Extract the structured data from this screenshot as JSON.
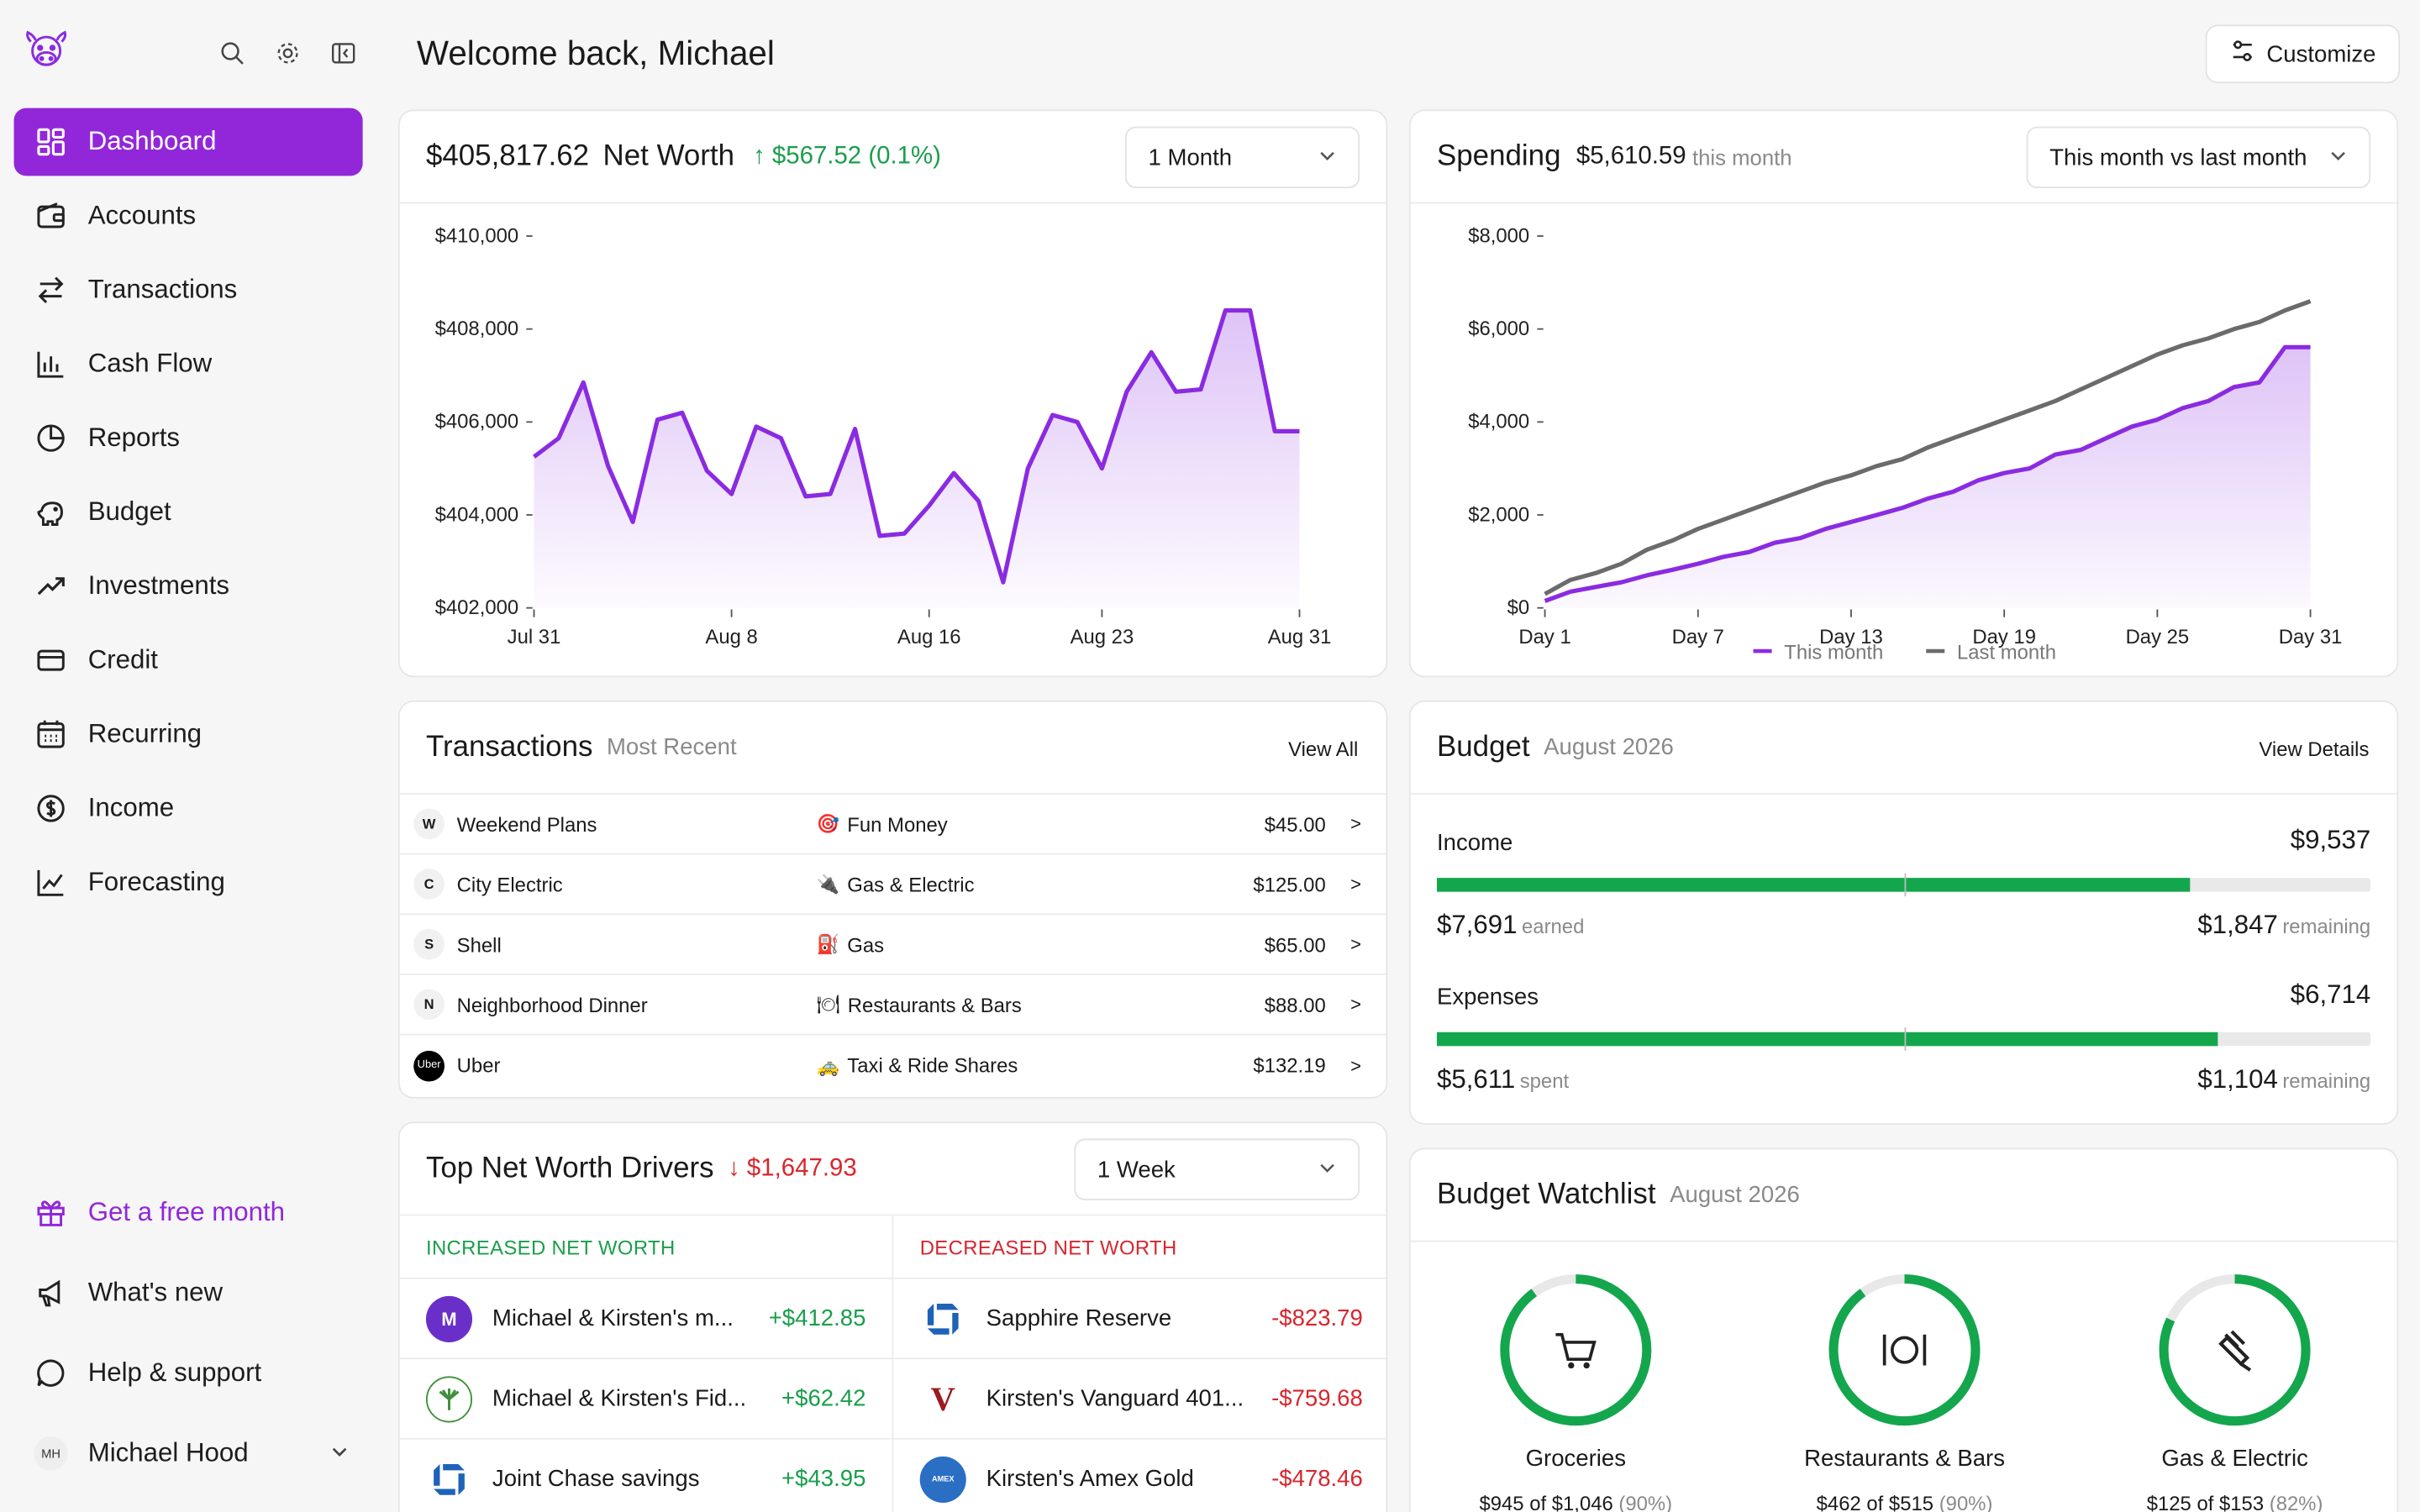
{
  "sidebar": {
    "nav": [
      {
        "label": "Dashboard",
        "icon": "dashboard-icon",
        "active": true
      },
      {
        "label": "Accounts",
        "icon": "wallet-icon"
      },
      {
        "label": "Transactions",
        "icon": "transfer-icon"
      },
      {
        "label": "Cash Flow",
        "icon": "bar-chart-icon"
      },
      {
        "label": "Reports",
        "icon": "pie-chart-icon"
      },
      {
        "label": "Budget",
        "icon": "piggy-bank-icon"
      },
      {
        "label": "Investments",
        "icon": "trend-up-icon"
      },
      {
        "label": "Credit",
        "icon": "credit-card-icon"
      },
      {
        "label": "Recurring",
        "icon": "calendar-icon"
      },
      {
        "label": "Income",
        "icon": "dollar-circle-icon"
      },
      {
        "label": "Forecasting",
        "icon": "line-chart-icon"
      }
    ],
    "bottom": [
      {
        "label": "Get a free month",
        "icon": "gift-icon"
      },
      {
        "label": "What's new",
        "icon": "megaphone-icon"
      },
      {
        "label": "Help & support",
        "icon": "chat-bubble-icon"
      }
    ],
    "user": {
      "initials": "MH",
      "name": "Michael Hood"
    }
  },
  "header": {
    "welcome": "Welcome back, Michael",
    "customize": "Customize"
  },
  "net_worth": {
    "amount": "$405,817.62",
    "label": "Net Worth",
    "change": "↑ $567.52 (0.1%)",
    "period": "1 Month"
  },
  "spending": {
    "title": "Spending",
    "amount": "$5,610.59",
    "suffix": "this month",
    "period": "This month vs last month"
  },
  "transactions": {
    "title": "Transactions",
    "subtitle": "Most Recent",
    "view_all": "View All",
    "rows": [
      {
        "initial": "W",
        "name": "Weekend Plans",
        "cat_icon": "🎯",
        "category": "Fun Money",
        "amount": "$45.00"
      },
      {
        "initial": "C",
        "name": "City Electric",
        "cat_icon": "🔌",
        "category": "Gas & Electric",
        "amount": "$125.00"
      },
      {
        "initial": "S",
        "name": "Shell",
        "cat_icon": "⛽",
        "category": "Gas",
        "amount": "$65.00"
      },
      {
        "initial": "N",
        "name": "Neighborhood Dinner",
        "cat_icon": "🍽",
        "category": "Restaurants & Bars",
        "amount": "$88.00"
      },
      {
        "initial": "Uber",
        "name": "Uber",
        "cat_icon": "🚕",
        "category": "Taxi & Ride Shares",
        "amount": "$132.19"
      }
    ]
  },
  "budget": {
    "title": "Budget",
    "subtitle": "August 2026",
    "view_details": "View Details",
    "income": {
      "label": "Income",
      "total": "$9,537",
      "earned": "$7,691",
      "earned_label": "earned",
      "remaining": "$1,847",
      "remaining_label": "remaining",
      "fraction": 0.806
    },
    "expenses": {
      "label": "Expenses",
      "total": "$6,714",
      "spent": "$5,611",
      "spent_label": "spent",
      "remaining": "$1,104",
      "remaining_label": "remaining",
      "fraction": 0.836
    }
  },
  "drivers": {
    "title": "Top Net Worth Drivers",
    "change": "↓ $1,647.93",
    "period": "1 Week",
    "increased_label": "INCREASED NET WORTH",
    "decreased_label": "DECREASED NET WORTH",
    "increased": [
      {
        "name": "Michael & Kirsten's m...",
        "amount": "+$412.85",
        "icon": "m-avatar-icon",
        "color": "#6b2fc9",
        "initial": "M"
      },
      {
        "name": "Michael & Kirsten's Fid...",
        "amount": "+$62.42",
        "icon": "fidelity-icon",
        "color": "#3f8f3a",
        "initial": ""
      },
      {
        "name": "Joint Chase savings",
        "amount": "+$43.95",
        "icon": "chase-icon",
        "color": "#1e63b8",
        "initial": ""
      }
    ],
    "decreased": [
      {
        "name": "Sapphire Reserve",
        "amount": "-$823.79",
        "icon": "chase-icon",
        "color": "#1e63b8",
        "initial": ""
      },
      {
        "name": "Kirsten's Vanguard 401...",
        "amount": "-$759.68",
        "icon": "vanguard-icon",
        "color": "#9b1b20",
        "initial": "V"
      },
      {
        "name": "Kirsten's Amex Gold",
        "amount": "-$478.46",
        "icon": "amex-icon",
        "color": "#2a6fc4",
        "initial": ""
      }
    ]
  },
  "watchlist": {
    "title": "Budget Watchlist",
    "subtitle": "August 2026",
    "items": [
      {
        "name": "Groceries",
        "detail": "$945 of $1,046",
        "pct": "(90%)",
        "fraction": 0.9,
        "icon": "shopping-cart-icon"
      },
      {
        "name": "Restaurants & Bars",
        "detail": "$462 of $515",
        "pct": "(90%)",
        "fraction": 0.9,
        "icon": "plate-utensils-icon"
      },
      {
        "name": "Gas & Electric",
        "detail": "$125 of $153",
        "pct": "(82%)",
        "fraction": 0.82,
        "icon": "plug-icon"
      }
    ]
  },
  "chart_data": [
    {
      "type": "area",
      "title": "Net Worth",
      "x_tick_labels": [
        "Jul 31",
        "Aug 8",
        "Aug 16",
        "Aug 23",
        "Aug 31"
      ],
      "y_tick_labels": [
        "$402,000",
        "$404,000",
        "$406,000",
        "$408,000",
        "$410,000"
      ],
      "ylim": [
        402000,
        410000
      ],
      "xlim": [
        "Jul 31",
        "Aug 31"
      ],
      "color": "#8a2be2",
      "x": [
        "Jul 31",
        "Aug 1",
        "Aug 2",
        "Aug 3",
        "Aug 4",
        "Aug 5",
        "Aug 6",
        "Aug 7",
        "Aug 8",
        "Aug 9",
        "Aug 10",
        "Aug 11",
        "Aug 12",
        "Aug 13",
        "Aug 14",
        "Aug 15",
        "Aug 16",
        "Aug 17",
        "Aug 18",
        "Aug 19",
        "Aug 20",
        "Aug 21",
        "Aug 22",
        "Aug 23",
        "Aug 24",
        "Aug 25",
        "Aug 26",
        "Aug 27",
        "Aug 28",
        "Aug 29",
        "Aug 30",
        "Aug 31"
      ],
      "values": [
        405250,
        405650,
        406850,
        405050,
        403850,
        406050,
        406200,
        404950,
        404450,
        405900,
        405650,
        404400,
        404450,
        405850,
        403550,
        403600,
        404200,
        404900,
        404300,
        402550,
        405000,
        406150,
        406000,
        405000,
        406650,
        407500,
        406650,
        406700,
        408400,
        408400,
        405800,
        405800
      ]
    },
    {
      "type": "line",
      "title": "Spending",
      "x_tick_labels": [
        "Day 1",
        "Day 7",
        "Day 13",
        "Day 19",
        "Day 25",
        "Day 31"
      ],
      "y_tick_labels": [
        "$0",
        "$2,000",
        "$4,000",
        "$6,000",
        "$8,000"
      ],
      "ylim": [
        0,
        8000
      ],
      "xlim": [
        1,
        31
      ],
      "legend": "bottom",
      "series": [
        {
          "name": "This month",
          "color": "#8a2be2",
          "fill": true,
          "x": [
            1,
            2,
            3,
            4,
            5,
            6,
            7,
            8,
            9,
            10,
            11,
            12,
            13,
            14,
            15,
            16,
            17,
            18,
            19,
            20,
            21,
            22,
            23,
            24,
            25,
            26,
            27,
            28,
            29,
            30,
            31
          ],
          "values": [
            150,
            350,
            450,
            550,
            700,
            820,
            950,
            1100,
            1200,
            1400,
            1500,
            1700,
            1850,
            2000,
            2150,
            2350,
            2500,
            2750,
            2900,
            3000,
            3300,
            3400,
            3650,
            3900,
            4050,
            4300,
            4450,
            4750,
            4850,
            5610,
            5610
          ]
        },
        {
          "name": "Last month",
          "color": "#6b6b6b",
          "fill": false,
          "x": [
            1,
            2,
            3,
            4,
            5,
            6,
            7,
            8,
            9,
            10,
            11,
            12,
            13,
            14,
            15,
            16,
            17,
            18,
            19,
            20,
            21,
            22,
            23,
            24,
            25,
            26,
            27,
            28,
            29,
            30,
            31
          ],
          "values": [
            300,
            600,
            750,
            950,
            1250,
            1450,
            1700,
            1900,
            2100,
            2300,
            2500,
            2700,
            2850,
            3050,
            3200,
            3450,
            3650,
            3850,
            4050,
            4250,
            4450,
            4700,
            4950,
            5200,
            5450,
            5650,
            5800,
            6000,
            6150,
            6400,
            6600
          ]
        }
      ]
    }
  ]
}
